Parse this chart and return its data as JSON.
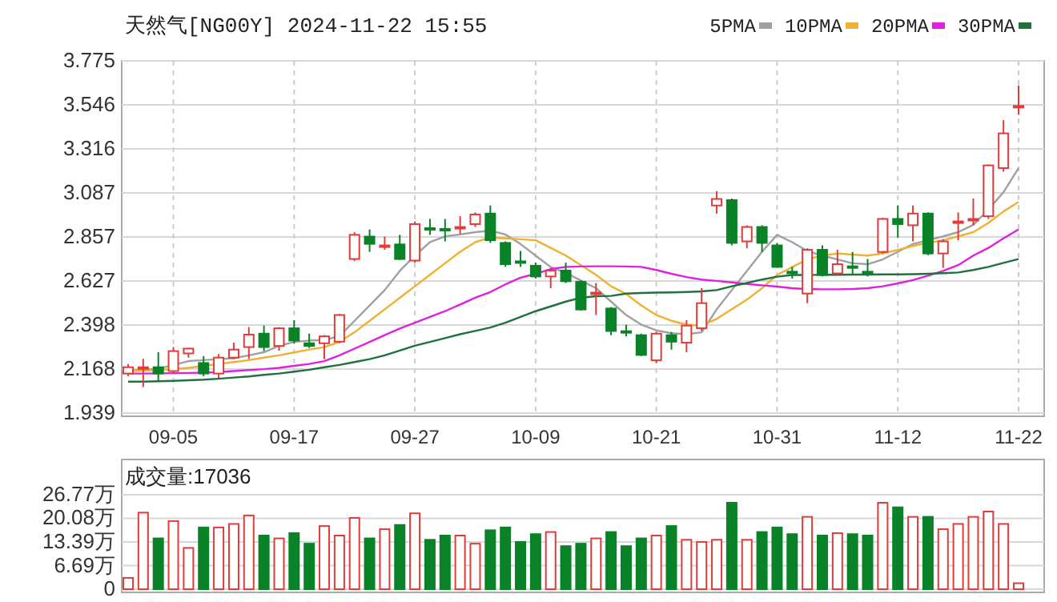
{
  "chart_data": [
    {
      "type": "candlestick",
      "title": "天然气[NG00Y] 2024-11-22 15:55",
      "categories": [
        null,
        null,
        null,
        "09-05",
        null,
        null,
        null,
        null,
        null,
        null,
        null,
        "09-17",
        null,
        null,
        null,
        null,
        null,
        null,
        null,
        "09-27",
        null,
        null,
        null,
        null,
        null,
        null,
        null,
        "10-09",
        null,
        null,
        null,
        null,
        null,
        null,
        null,
        "10-21",
        null,
        null,
        null,
        null,
        null,
        null,
        null,
        "10-31",
        null,
        null,
        null,
        null,
        null,
        null,
        null,
        "11-12",
        null,
        null,
        null,
        null,
        null,
        null,
        null,
        "11-22"
      ],
      "ohlc": [
        [
          2.145,
          2.195,
          2.131,
          2.178
        ],
        [
          2.175,
          2.222,
          2.075,
          2.178
        ],
        [
          2.178,
          2.256,
          2.103,
          2.145
        ],
        [
          2.158,
          2.283,
          2.145,
          2.262
        ],
        [
          2.25,
          2.28,
          2.228,
          2.275
        ],
        [
          2.2,
          2.236,
          2.131,
          2.145
        ],
        [
          2.145,
          2.247,
          2.122,
          2.228
        ],
        [
          2.228,
          2.306,
          2.22,
          2.27
        ],
        [
          2.283,
          2.387,
          2.22,
          2.348
        ],
        [
          2.353,
          2.395,
          2.262,
          2.283
        ],
        [
          2.289,
          2.387,
          2.264,
          2.381
        ],
        [
          2.381,
          2.423,
          2.303,
          2.317
        ],
        [
          2.303,
          2.353,
          2.278,
          2.289
        ],
        [
          2.303,
          2.345,
          2.22,
          2.339
        ],
        [
          2.311,
          2.456,
          2.303,
          2.45
        ],
        [
          2.742,
          2.882,
          2.731,
          2.868
        ],
        [
          2.859,
          2.896,
          2.779,
          2.821
        ],
        [
          2.81,
          2.859,
          2.79,
          2.813
        ],
        [
          2.818,
          2.868,
          2.737,
          2.742
        ],
        [
          2.734,
          2.938,
          2.723,
          2.924
        ],
        [
          2.903,
          2.951,
          2.868,
          2.901
        ],
        [
          2.899,
          2.951,
          2.834,
          2.896
        ],
        [
          2.906,
          2.965,
          2.873,
          2.909
        ],
        [
          2.924,
          2.985,
          2.909,
          2.974
        ],
        [
          2.979,
          3.021,
          2.826,
          2.84
        ],
        [
          2.826,
          2.834,
          2.701,
          2.715
        ],
        [
          2.73,
          2.784,
          2.701,
          2.723
        ],
        [
          2.707,
          2.723,
          2.64,
          2.651
        ],
        [
          2.651,
          2.687,
          2.59,
          2.682
        ],
        [
          2.682,
          2.723,
          2.617,
          2.626
        ],
        [
          2.623,
          2.631,
          2.473,
          2.479
        ],
        [
          2.565,
          2.617,
          2.45,
          2.567
        ],
        [
          2.484,
          2.492,
          2.345,
          2.367
        ],
        [
          2.366,
          2.4,
          2.339,
          2.362
        ],
        [
          2.345,
          2.353,
          2.236,
          2.242
        ],
        [
          2.214,
          2.362,
          2.2,
          2.353
        ],
        [
          2.345,
          2.362,
          2.27,
          2.311
        ],
        [
          2.306,
          2.423,
          2.256,
          2.395
        ],
        [
          2.381,
          2.59,
          2.367,
          2.512
        ],
        [
          3.021,
          3.096,
          2.979,
          3.055
        ],
        [
          3.049,
          3.057,
          2.813,
          2.826
        ],
        [
          2.834,
          2.918,
          2.798,
          2.909
        ],
        [
          2.909,
          2.918,
          2.779,
          2.826
        ],
        [
          2.813,
          2.826,
          2.696,
          2.701
        ],
        [
          2.676,
          2.701,
          2.64,
          2.673
        ],
        [
          2.562,
          2.798,
          2.512,
          2.79
        ],
        [
          2.79,
          2.813,
          2.651,
          2.659
        ],
        [
          2.667,
          2.79,
          2.659,
          2.715
        ],
        [
          2.704,
          2.779,
          2.659,
          2.701
        ],
        [
          2.676,
          2.742,
          2.651,
          2.673
        ],
        [
          2.779,
          2.957,
          2.771,
          2.951
        ],
        [
          2.951,
          3.021,
          2.854,
          2.924
        ],
        [
          2.918,
          3.021,
          2.834,
          2.979
        ],
        [
          2.979,
          2.985,
          2.762,
          2.771
        ],
        [
          2.771,
          2.846,
          2.696,
          2.834
        ],
        [
          2.935,
          2.985,
          2.84,
          2.938
        ],
        [
          2.946,
          3.057,
          2.918,
          2.951
        ],
        [
          2.965,
          3.235,
          2.951,
          3.23
        ],
        [
          3.216,
          3.466,
          3.197,
          3.397
        ],
        [
          3.535,
          3.647,
          3.494,
          3.54
        ]
      ],
      "colors": [
        "#e03c3c",
        "#e03c3c",
        "#0a8228",
        "#e03c3c",
        "#e03c3c",
        "#0a8228",
        "#e03c3c",
        "#e03c3c",
        "#e03c3c",
        "#0a8228",
        "#e03c3c",
        "#0a8228",
        "#0a8228",
        "#e03c3c",
        "#e03c3c",
        "#e03c3c",
        "#0a8228",
        "#e03c3c",
        "#0a8228",
        "#e03c3c",
        "#0a8228",
        "#0a8228",
        "#e03c3c",
        "#e03c3c",
        "#0a8228",
        "#0a8228",
        "#0a8228",
        "#0a8228",
        "#e03c3c",
        "#0a8228",
        "#0a8228",
        "#e03c3c",
        "#0a8228",
        "#0a8228",
        "#0a8228",
        "#e03c3c",
        "#0a8228",
        "#e03c3c",
        "#e03c3c",
        "#e03c3c",
        "#0a8228",
        "#e03c3c",
        "#0a8228",
        "#0a8228",
        "#0a8228",
        "#e03c3c",
        "#0a8228",
        "#e03c3c",
        "#0a8228",
        "#0a8228",
        "#e03c3c",
        "#0a8228",
        "#e03c3c",
        "#0a8228",
        "#e03c3c",
        "#e03c3c",
        "#e03c3c",
        "#e03c3c",
        "#e03c3c",
        "#e03c3c"
      ],
      "series": [
        {
          "name": "5PMA",
          "type": "line",
          "color": "#a0a0a0",
          "values": [
            2.16,
            2.165,
            2.17,
            2.19,
            2.21,
            2.215,
            2.22,
            2.225,
            2.24,
            2.256,
            2.29,
            2.31,
            2.317,
            2.32,
            2.34,
            2.42,
            2.5,
            2.58,
            2.68,
            2.76,
            2.83,
            2.86,
            2.87,
            2.882,
            2.89,
            2.87,
            2.82,
            2.76,
            2.7,
            2.67,
            2.63,
            2.59,
            2.52,
            2.45,
            2.4,
            2.37,
            2.355,
            2.35,
            2.36,
            2.48,
            2.58,
            2.68,
            2.78,
            2.868,
            2.83,
            2.784,
            2.76,
            2.74,
            2.72,
            2.715,
            2.74,
            2.78,
            2.82,
            2.84,
            2.86,
            2.882,
            2.92,
            3.0,
            3.09,
            3.216
          ]
        },
        {
          "name": "10PMA",
          "type": "line",
          "color": "#f0b030",
          "values": [
            2.158,
            2.16,
            2.163,
            2.168,
            2.175,
            2.185,
            2.195,
            2.205,
            2.215,
            2.228,
            2.24,
            2.255,
            2.27,
            2.283,
            2.31,
            2.36,
            2.42,
            2.48,
            2.54,
            2.6,
            2.66,
            2.72,
            2.78,
            2.83,
            2.854,
            2.85,
            2.845,
            2.84,
            2.8,
            2.76,
            2.71,
            2.66,
            2.6,
            2.56,
            2.5,
            2.45,
            2.42,
            2.4,
            2.395,
            2.43,
            2.48,
            2.53,
            2.59,
            2.659,
            2.7,
            2.74,
            2.76,
            2.771,
            2.765,
            2.76,
            2.771,
            2.79,
            2.81,
            2.826,
            2.84,
            2.86,
            2.882,
            2.93,
            2.99,
            3.04
          ]
        },
        {
          "name": "20PMA",
          "type": "line",
          "color": "#e020e0",
          "values": [
            2.145,
            2.145,
            2.146,
            2.147,
            2.148,
            2.15,
            2.153,
            2.158,
            2.163,
            2.168,
            2.175,
            2.185,
            2.195,
            2.21,
            2.24,
            2.275,
            2.31,
            2.345,
            2.38,
            2.41,
            2.44,
            2.47,
            2.505,
            2.54,
            2.57,
            2.61,
            2.645,
            2.665,
            2.69,
            2.701,
            2.703,
            2.704,
            2.704,
            2.703,
            2.701,
            2.685,
            2.665,
            2.648,
            2.635,
            2.628,
            2.62,
            2.612,
            2.605,
            2.598,
            2.59,
            2.585,
            2.584,
            2.584,
            2.586,
            2.59,
            2.6,
            2.615,
            2.632,
            2.655,
            2.68,
            2.71,
            2.76,
            2.8,
            2.85,
            2.896
          ]
        },
        {
          "name": "30PMA",
          "type": "line",
          "color": "#207040",
          "values": [
            2.103,
            2.103,
            2.105,
            2.107,
            2.11,
            2.113,
            2.118,
            2.124,
            2.13,
            2.138,
            2.145,
            2.155,
            2.165,
            2.178,
            2.19,
            2.205,
            2.22,
            2.24,
            2.265,
            2.29,
            2.31,
            2.33,
            2.35,
            2.367,
            2.385,
            2.41,
            2.44,
            2.47,
            2.495,
            2.52,
            2.54,
            2.548,
            2.55,
            2.562,
            2.565,
            2.567,
            2.568,
            2.57,
            2.573,
            2.58,
            2.6,
            2.617,
            2.635,
            2.65,
            2.659,
            2.659,
            2.66,
            2.66,
            2.661,
            2.661,
            2.662,
            2.662,
            2.663,
            2.665,
            2.668,
            2.672,
            2.685,
            2.701,
            2.722,
            2.742
          ]
        }
      ],
      "ylim": [
        1.939,
        3.775
      ],
      "yticks": [
        1.939,
        2.168,
        2.398,
        2.627,
        2.857,
        3.087,
        3.316,
        3.546,
        3.775
      ],
      "grid": true,
      "legend": "top right"
    },
    {
      "type": "bar",
      "title": "成交量:17036",
      "categories": [
        null,
        null,
        null,
        null,
        null,
        null,
        null,
        null,
        null,
        null,
        null,
        null,
        null,
        null,
        null,
        null,
        null,
        null,
        null,
        null,
        null,
        null,
        null,
        null,
        null,
        null,
        null,
        null,
        null,
        null,
        null,
        null,
        null,
        null,
        null,
        null,
        null,
        null,
        null,
        null,
        null,
        null,
        null,
        null,
        null,
        null,
        null,
        null,
        null,
        null,
        null,
        null,
        null,
        null,
        null,
        null,
        null,
        null,
        null,
        null
      ],
      "values": [
        3.2,
        21.7,
        14.4,
        19.3,
        11.7,
        17.5,
        17.5,
        18.5,
        20.9,
        15.2,
        14.4,
        15.9,
        12.9,
        17.9,
        15.2,
        20.2,
        14.4,
        17.0,
        18.2,
        21.5,
        14.0,
        15.2,
        15.2,
        12.9,
        16.7,
        17.5,
        13.4,
        15.6,
        16.2,
        12.2,
        12.9,
        14.4,
        16.2,
        12.2,
        14.4,
        15.2,
        17.9,
        14.0,
        13.4,
        14.0,
        24.5,
        14.0,
        16.2,
        17.5,
        15.6,
        20.5,
        15.2,
        15.9,
        15.6,
        15.2,
        24.5,
        23.2,
        20.5,
        20.5,
        17.0,
        18.5,
        20.5,
        22.0,
        18.5,
        1.7
      ],
      "colors": [
        "#e03c3c",
        "#e03c3c",
        "#0a8228",
        "#e03c3c",
        "#e03c3c",
        "#0a8228",
        "#e03c3c",
        "#e03c3c",
        "#e03c3c",
        "#0a8228",
        "#e03c3c",
        "#0a8228",
        "#0a8228",
        "#e03c3c",
        "#e03c3c",
        "#e03c3c",
        "#0a8228",
        "#e03c3c",
        "#0a8228",
        "#e03c3c",
        "#0a8228",
        "#0a8228",
        "#e03c3c",
        "#e03c3c",
        "#0a8228",
        "#0a8228",
        "#0a8228",
        "#0a8228",
        "#e03c3c",
        "#0a8228",
        "#0a8228",
        "#e03c3c",
        "#0a8228",
        "#0a8228",
        "#0a8228",
        "#e03c3c",
        "#0a8228",
        "#e03c3c",
        "#e03c3c",
        "#e03c3c",
        "#0a8228",
        "#e03c3c",
        "#0a8228",
        "#0a8228",
        "#0a8228",
        "#e03c3c",
        "#0a8228",
        "#e03c3c",
        "#0a8228",
        "#0a8228",
        "#e03c3c",
        "#0a8228",
        "#e03c3c",
        "#0a8228",
        "#e03c3c",
        "#e03c3c",
        "#e03c3c",
        "#e03c3c",
        "#e03c3c",
        "#e03c3c"
      ],
      "ylim": [
        0,
        26.77
      ],
      "yticks": [
        0,
        {
          "value": 6.69,
          "label": "6.69万"
        },
        {
          "value": 13.39,
          "label": "13.39万"
        },
        {
          "value": 20.08,
          "label": "20.08万"
        },
        {
          "value": 26.77,
          "label": "26.77万"
        }
      ],
      "grid": "y",
      "tick_labels": "y"
    }
  ]
}
